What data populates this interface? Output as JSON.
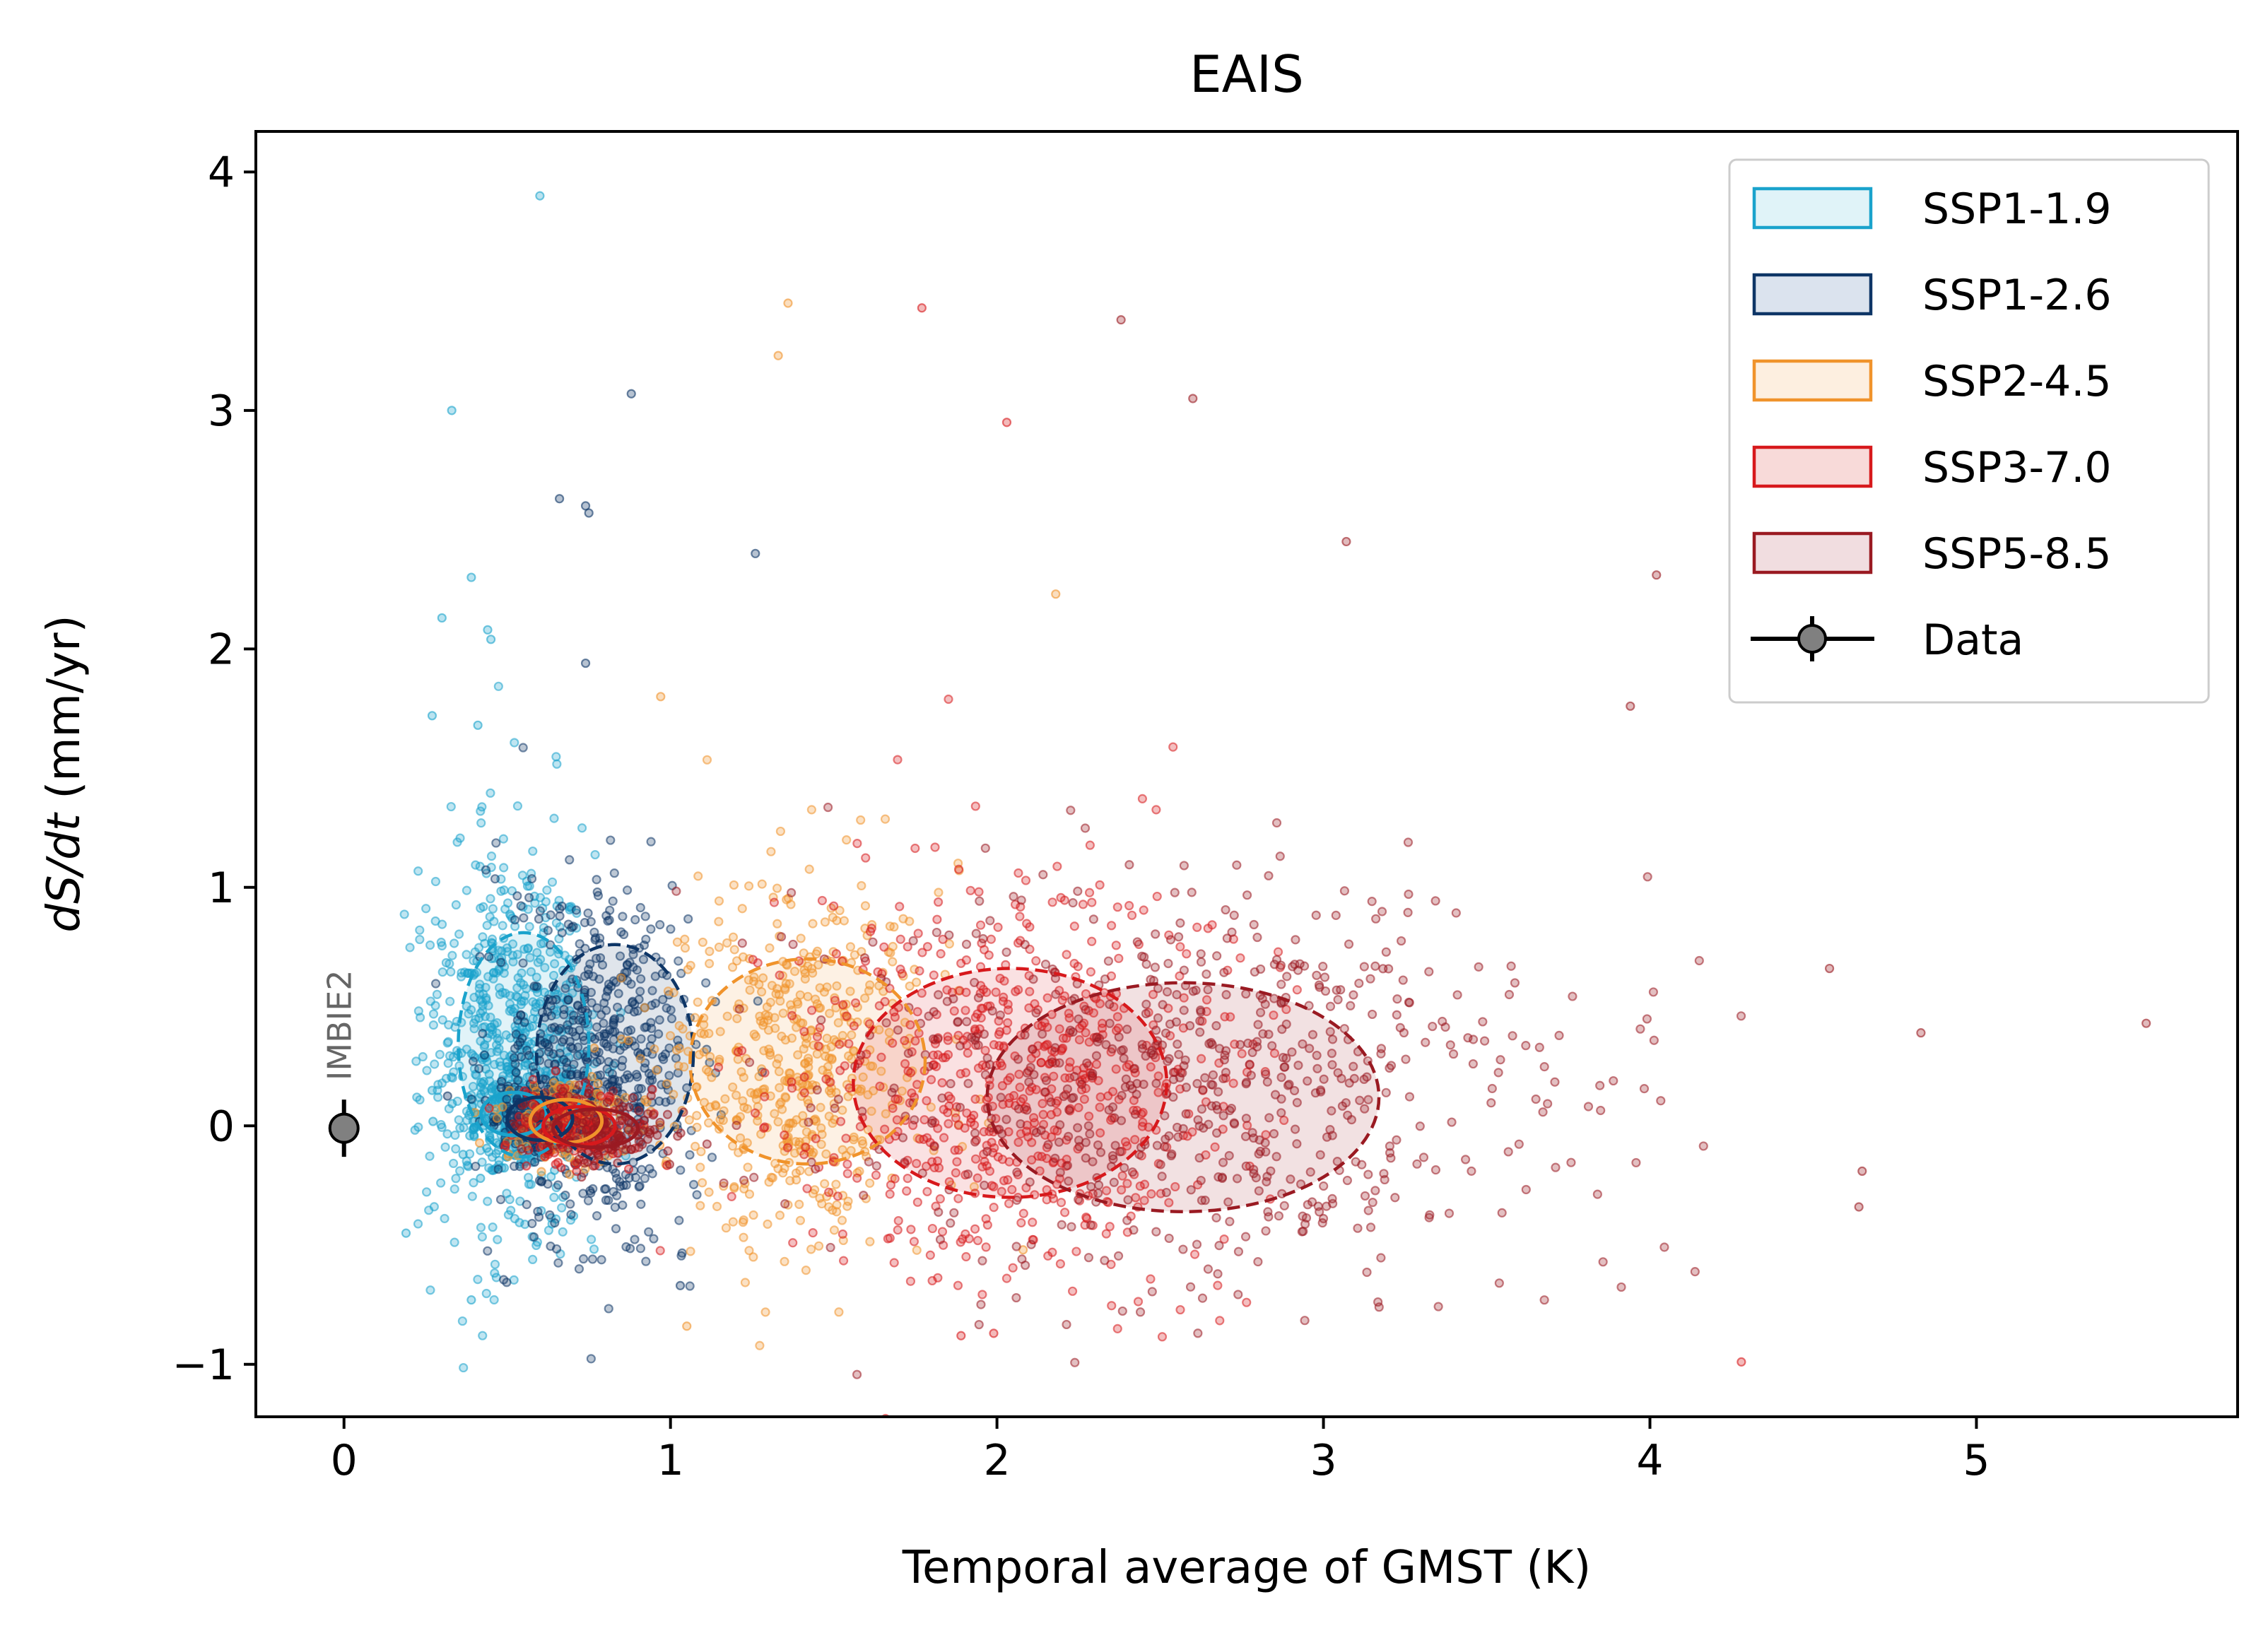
{
  "chart_data": {
    "type": "scatter",
    "title": "EAIS",
    "xlabel": "Temporal average of GMST (K)",
    "ylabel_parts": [
      "dS/dt",
      " (mm/yr)"
    ],
    "xlim": [
      -0.27,
      5.8
    ],
    "ylim": [
      -1.22,
      4.17
    ],
    "xticks": [
      0,
      1,
      2,
      3,
      4,
      5
    ],
    "yticks": [
      -1,
      0,
      1,
      2,
      3,
      4
    ],
    "xtick_labels": [
      "0",
      "1",
      "2",
      "3",
      "4",
      "5"
    ],
    "ytick_labels": [
      "−1",
      "0",
      "1",
      "2",
      "3",
      "4"
    ],
    "grid": false,
    "legend_position": "top-right",
    "series": [
      {
        "name": "SSP1-1.9",
        "color": "#1aa3cc",
        "fill": "#e0f3f8",
        "count": 620,
        "center": [
          0.5,
          0.32
        ],
        "spread": [
          0.13,
          0.4
        ],
        "inner_ellipse": {
          "center": [
            0.52,
            0.05
          ],
          "radius": [
            0.1,
            0.09
          ]
        },
        "outer_ellipse": {
          "center": [
            0.55,
            0.34
          ],
          "radius": [
            0.2,
            0.47
          ]
        },
        "outliers": [
          [
            0.6,
            3.9
          ],
          [
            0.33,
            3.0
          ],
          [
            0.39,
            2.3
          ],
          [
            0.3,
            2.13
          ],
          [
            0.44,
            2.08
          ],
          [
            0.45,
            2.04
          ],
          [
            0.27,
            1.72
          ],
          [
            0.41,
            1.68
          ],
          [
            0.19,
            -0.45
          ],
          [
            0.39,
            -0.73
          ]
        ]
      },
      {
        "name": "SSP1-2.6",
        "color": "#0d3566",
        "fill": "#dbe3ee",
        "count": 560,
        "center": [
          0.78,
          0.25
        ],
        "spread": [
          0.15,
          0.38
        ],
        "inner_ellipse": {
          "center": [
            0.6,
            0.03
          ],
          "radius": [
            0.1,
            0.09
          ]
        },
        "outer_ellipse": {
          "center": [
            0.83,
            0.3
          ],
          "radius": [
            0.24,
            0.46
          ]
        },
        "outliers": [
          [
            0.88,
            3.07
          ],
          [
            0.66,
            2.63
          ],
          [
            0.74,
            2.6
          ],
          [
            0.75,
            2.57
          ],
          [
            1.26,
            2.4
          ],
          [
            0.74,
            1.94
          ],
          [
            1.03,
            -0.67
          ]
        ]
      },
      {
        "name": "SSP2-4.5",
        "color": "#f0932b",
        "fill": "#fdefe0",
        "count": 520,
        "center": [
          1.38,
          0.28
        ],
        "spread": [
          0.2,
          0.4
        ],
        "inner_ellipse": {
          "center": [
            0.68,
            0.02
          ],
          "radius": [
            0.11,
            0.09
          ]
        },
        "outer_ellipse": {
          "center": [
            1.42,
            0.27
          ],
          "radius": [
            0.36,
            0.43
          ]
        },
        "outliers": [
          [
            1.36,
            3.45
          ],
          [
            1.33,
            3.23
          ],
          [
            2.18,
            2.23
          ],
          [
            0.97,
            1.8
          ],
          [
            1.05,
            -0.84
          ],
          [
            2.08,
            -0.52
          ]
        ]
      },
      {
        "name": "SSP3-7.0",
        "color": "#d7191c",
        "fill": "#f8dad9",
        "count": 680,
        "center": [
          2.05,
          0.2
        ],
        "spread": [
          0.35,
          0.42
        ],
        "inner_ellipse": {
          "center": [
            0.72,
            0.0
          ],
          "radius": [
            0.11,
            0.08
          ]
        },
        "outer_ellipse": {
          "center": [
            2.04,
            0.18
          ],
          "radius": [
            0.48,
            0.48
          ]
        },
        "outliers": [
          [
            1.77,
            3.43
          ],
          [
            2.03,
            2.95
          ],
          [
            1.89,
            -0.88
          ],
          [
            1.99,
            -0.87
          ],
          [
            4.28,
            -0.99
          ]
        ]
      },
      {
        "name": "SSP5-8.5",
        "color": "#9a1a22",
        "fill": "#f1dde0",
        "count": 680,
        "center": [
          2.62,
          0.15
        ],
        "spread": [
          0.55,
          0.42
        ],
        "inner_ellipse": {
          "center": [
            0.77,
            -0.01
          ],
          "radius": [
            0.13,
            0.08
          ]
        },
        "outer_ellipse": {
          "center": [
            2.57,
            0.12
          ],
          "radius": [
            0.6,
            0.48
          ]
        },
        "outliers": [
          [
            2.38,
            3.38
          ],
          [
            2.6,
            3.05
          ],
          [
            3.07,
            2.45
          ],
          [
            4.02,
            2.31
          ],
          [
            3.94,
            1.76
          ],
          [
            5.52,
            0.43
          ],
          [
            4.83,
            0.39
          ],
          [
            4.55,
            0.66
          ],
          [
            4.65,
            -0.19
          ],
          [
            4.64,
            -0.34
          ]
        ]
      }
    ],
    "data_point": {
      "name": "Data",
      "label": "IMBIE2",
      "x": 0.0,
      "y": -0.01,
      "yerr": 0.12,
      "color": "#808080",
      "edge": "#000000"
    }
  }
}
